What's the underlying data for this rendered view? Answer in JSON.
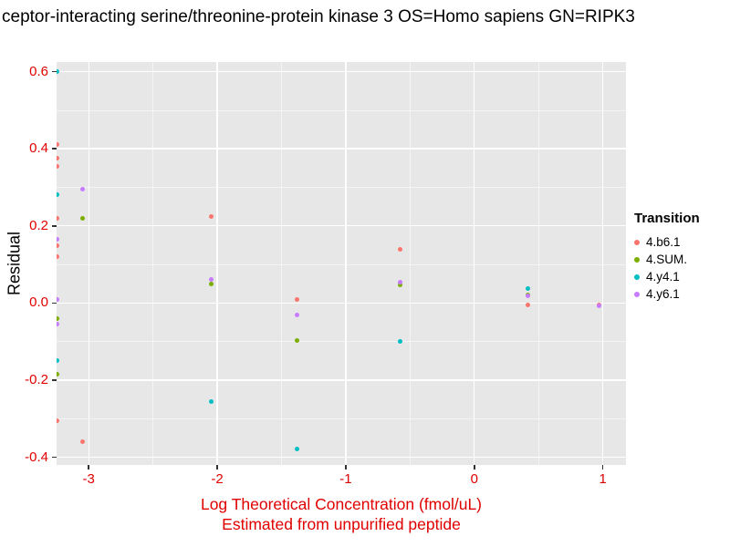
{
  "chart_data": {
    "type": "scatter",
    "title": "ceptor-interacting serine/threonine-protein kinase 3 OS=Homo sapiens GN=RIPK3",
    "xlabel_line1": "Log Theoretical Concentration (fmol/uL)",
    "xlabel_line2": "Estimated from unpurified peptide",
    "ylabel": "Residual",
    "xlim": [
      -3.25,
      1.18
    ],
    "ylim": [
      -0.42,
      0.625
    ],
    "x_ticks": [
      {
        "v": -3,
        "label": "-3"
      },
      {
        "v": -2,
        "label": "-2"
      },
      {
        "v": -1,
        "label": "-1"
      },
      {
        "v": 0,
        "label": "0"
      },
      {
        "v": 1,
        "label": "1"
      }
    ],
    "y_ticks": [
      {
        "v": 0.6,
        "label": "0.6"
      },
      {
        "v": 0.4,
        "label": "0.4"
      },
      {
        "v": 0.2,
        "label": "0.2"
      },
      {
        "v": 0.0,
        "label": "0.0"
      },
      {
        "v": -0.2,
        "label": "-0.2"
      },
      {
        "v": -0.4,
        "label": "-0.4"
      }
    ],
    "grid": {
      "major": true,
      "minor": true
    },
    "legend_position": "right",
    "legend_title": "Transition",
    "colors": {
      "panel_bg": "#E7E7E7",
      "grid": "#FFFFFF",
      "tick_text": "#E00000",
      "x_axis_title": "#E00000",
      "y_axis_title": "#000000",
      "title_text": "#000000",
      "tick_mark": "#333333"
    },
    "series": [
      {
        "name": "4.b6.1",
        "color": "#F8766D",
        "points": [
          [
            -3.25,
            0.41
          ],
          [
            -3.25,
            0.375
          ],
          [
            -3.25,
            0.355
          ],
          [
            -3.25,
            0.22
          ],
          [
            -3.25,
            0.148
          ],
          [
            -3.25,
            0.12
          ],
          [
            -3.25,
            -0.305
          ],
          [
            -3.05,
            -0.36
          ],
          [
            -2.05,
            0.225
          ],
          [
            -1.38,
            0.01
          ],
          [
            -0.58,
            0.14
          ],
          [
            0.42,
            -0.005
          ],
          [
            0.97,
            -0.005
          ]
        ]
      },
      {
        "name": "4.SUM.",
        "color": "#7CAE00",
        "points": [
          [
            -3.25,
            -0.04
          ],
          [
            -3.25,
            -0.185
          ],
          [
            -3.05,
            0.22
          ],
          [
            -2.05,
            0.05
          ],
          [
            -1.38,
            -0.098
          ],
          [
            -0.58,
            0.048
          ],
          [
            0.42,
            0.02
          ]
        ]
      },
      {
        "name": "4.y4.1",
        "color": "#00BFC4",
        "points": [
          [
            -3.25,
            0.6
          ],
          [
            -3.25,
            0.28
          ],
          [
            -3.25,
            -0.15
          ],
          [
            -2.05,
            -0.255
          ],
          [
            -1.38,
            -0.378
          ],
          [
            -0.58,
            -0.1
          ],
          [
            0.42,
            0.038
          ]
        ]
      },
      {
        "name": "4.y6.1",
        "color": "#C77CFF",
        "points": [
          [
            -3.25,
            0.165
          ],
          [
            -3.25,
            0.01
          ],
          [
            -3.25,
            -0.055
          ],
          [
            -3.05,
            0.295
          ],
          [
            -2.05,
            0.06
          ],
          [
            -1.38,
            -0.03
          ],
          [
            -0.58,
            0.055
          ],
          [
            0.42,
            0.018
          ],
          [
            0.97,
            -0.008
          ]
        ]
      }
    ]
  }
}
